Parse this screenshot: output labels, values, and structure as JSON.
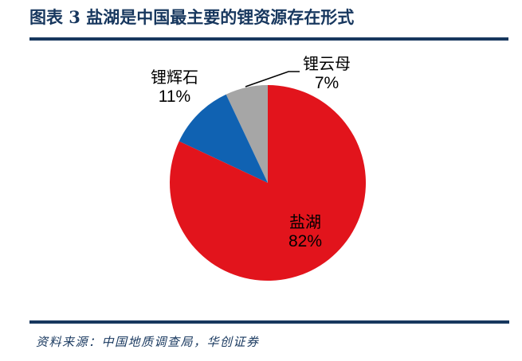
{
  "figure": {
    "title": "图表 3 盐湖是中国最主要的锂资源存在形式",
    "source": "资料来源：中国地质调查局，华创证券"
  },
  "colors": {
    "accent_navy": "#17375E",
    "slice_red": "#E2141C",
    "slice_blue": "#1062B2",
    "slice_gray": "#A6A6A6",
    "label_text": "#000000",
    "background": "#FFFFFF"
  },
  "chart_data": {
    "type": "pie",
    "title": "图表 3 盐湖是中国最主要的锂资源存在形式",
    "unit": "%",
    "direction": "clockwise",
    "start_angle_deg": 0,
    "legend": "none",
    "labels_on_chart": true,
    "slices": [
      {
        "label": "盐湖",
        "value": 82,
        "pct_label": "82%",
        "color": "#E2141C"
      },
      {
        "label": "锂辉石",
        "value": 11,
        "pct_label": "11%",
        "color": "#1062B2"
      },
      {
        "label": "锂云母",
        "value": 7,
        "pct_label": "7%",
        "color": "#A6A6A6"
      }
    ]
  }
}
